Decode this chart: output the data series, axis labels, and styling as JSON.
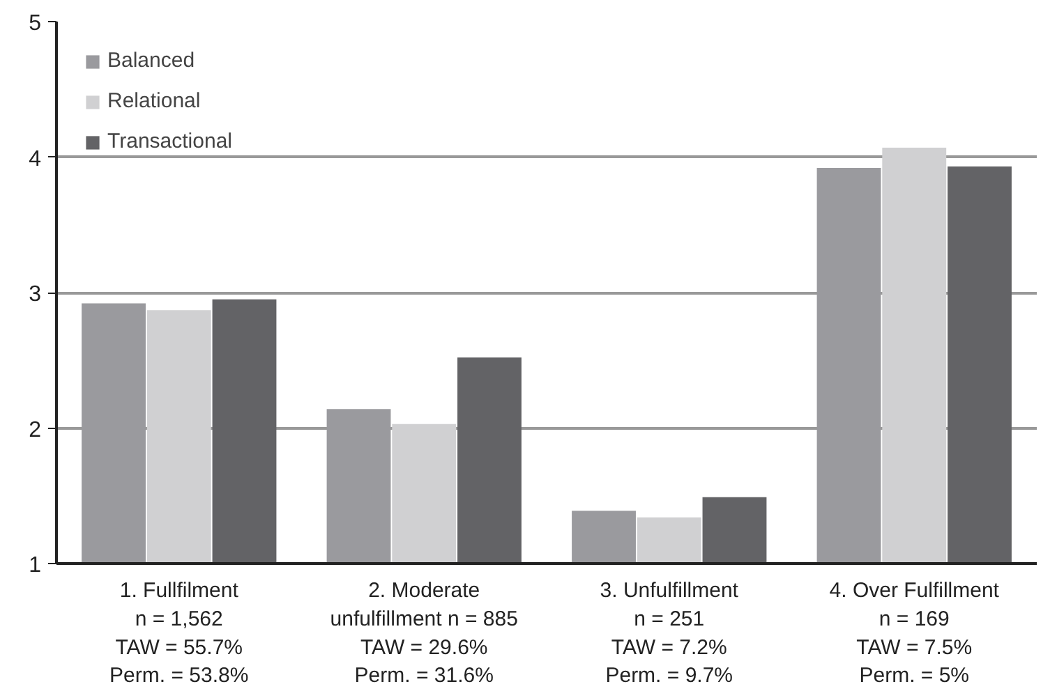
{
  "chart_data": {
    "type": "bar",
    "categories": [
      "1. Fullfilment\nn = 1,562\nTAW = 55.7%\nPerm. = 53.8%",
      "2. Moderate\nunfulfillment n = 885\nTAW = 29.6%\nPerm. = 31.6%",
      "3. Unfulfillment\nn = 251\nTAW = 7.2%\nPerm. = 9.7%",
      "4. Over Fulfillment\nn = 169\nTAW = 7.5%\nPerm. = 5%"
    ],
    "series": [
      {
        "name": "Balanced",
        "color": "#9a9a9e",
        "values": [
          2.92,
          2.14,
          1.39,
          3.92
        ]
      },
      {
        "name": "Relational",
        "color": "#d0d0d2",
        "values": [
          2.87,
          2.03,
          1.34,
          4.07
        ]
      },
      {
        "name": "Transactional",
        "color": "#636366",
        "values": [
          2.95,
          2.52,
          1.49,
          3.93
        ]
      }
    ],
    "ylim": [
      1,
      5
    ],
    "yticks": [
      1,
      2,
      3,
      4,
      5
    ],
    "grid": "y",
    "legend": "top left"
  }
}
